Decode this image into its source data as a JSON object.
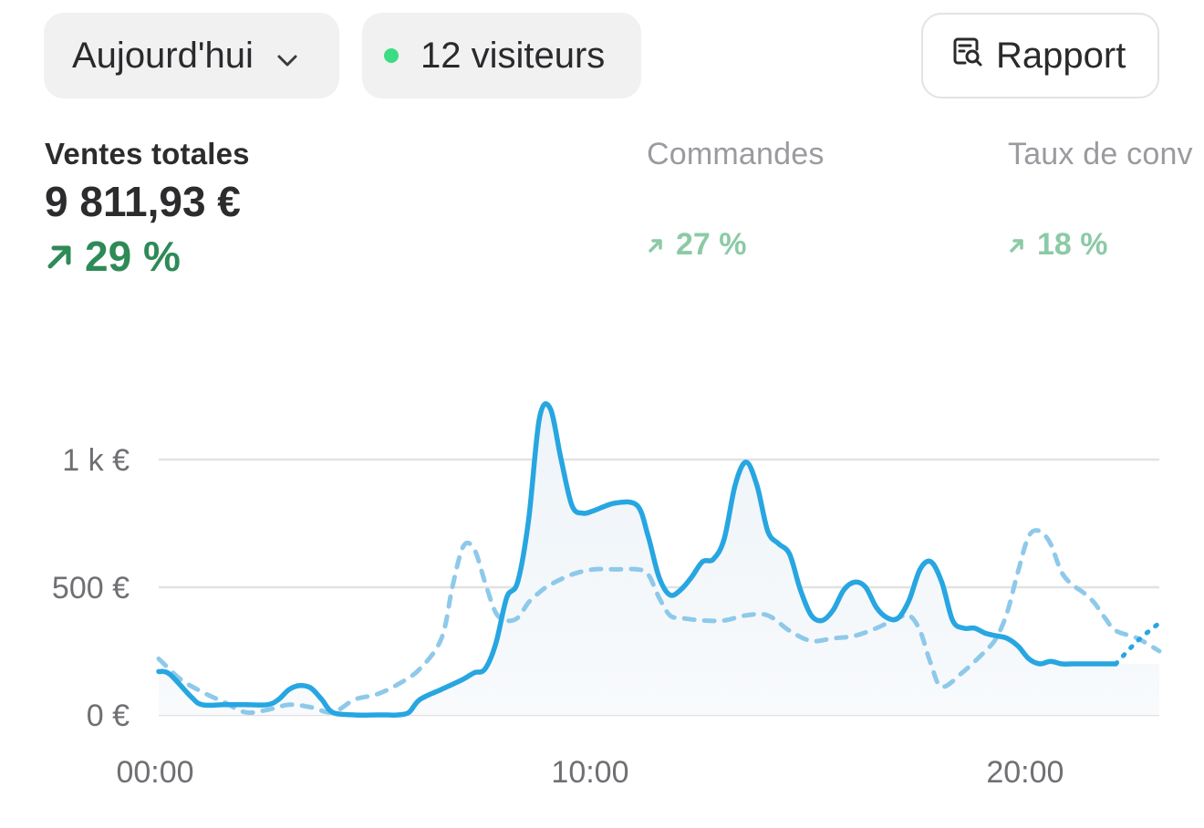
{
  "toolbar": {
    "date_label": "Aujourd'hui",
    "visitors_label": "12 visiteurs",
    "report_label": "Rapport",
    "live_dot_color": "#3ddc84"
  },
  "metrics": {
    "sales": {
      "label": "Ventes totales",
      "value": "9 811,93 €",
      "delta": "29 %"
    },
    "orders": {
      "label": "Commandes",
      "delta": "27 %"
    },
    "conversion": {
      "label": "Taux de conv",
      "delta": "18 %"
    }
  },
  "colors": {
    "current_series": "#27a6e1",
    "previous_series": "#8ec9ea",
    "positive": "#2e8a57",
    "positive_faded": "#8ccaa6"
  },
  "chart_data": {
    "type": "line",
    "y_ticks": [
      {
        "value": 0,
        "label": "0 €"
      },
      {
        "value": 500,
        "label": "500 €"
      },
      {
        "value": 1000,
        "label": "1 k €"
      }
    ],
    "x_ticks": [
      {
        "value": 0,
        "label": "00:00"
      },
      {
        "value": 10,
        "label": "10:00"
      },
      {
        "value": 20,
        "label": "20:00"
      }
    ],
    "ylim": [
      0,
      1000
    ],
    "xlim": [
      0,
      23
    ],
    "grid": true,
    "series": [
      {
        "style": "solid-area",
        "x": [
          0,
          0.25,
          0.75,
          1,
          1.5,
          2,
          2.5,
          2.75,
          3,
          3.25,
          3.5,
          3.75,
          4,
          4.5,
          5,
          5.25,
          5.5,
          5.75,
          6,
          6.5,
          7,
          7.25,
          7.5,
          7.75,
          8,
          8.25,
          8.5,
          8.75,
          9,
          9.25,
          9.5,
          9.75,
          10,
          10.5,
          11,
          11.25,
          11.5,
          11.75,
          12,
          12.25,
          12.5,
          12.75,
          13,
          13.25,
          13.5,
          13.75,
          14,
          14.25,
          14.5,
          14.75,
          15,
          15.25,
          15.5,
          15.75,
          16,
          16.25,
          16.5,
          16.75,
          17,
          17.25,
          17.5,
          17.75,
          18,
          18.25,
          18.5,
          18.75,
          19,
          19.25,
          19.5,
          19.75,
          20,
          20.25,
          20.5,
          20.75,
          21,
          21.25,
          21.5,
          21.75,
          22
        ],
        "values": [
          170,
          160,
          70,
          40,
          40,
          40,
          40,
          60,
          100,
          115,
          105,
          60,
          10,
          0,
          0,
          0,
          0,
          10,
          60,
          100,
          140,
          165,
          180,
          280,
          460,
          520,
          760,
          1160,
          1200,
          1000,
          820,
          790,
          800,
          830,
          820,
          700,
          540,
          470,
          490,
          540,
          600,
          610,
          690,
          900,
          990,
          900,
          720,
          670,
          630,
          490,
          390,
          370,
          410,
          490,
          520,
          500,
          420,
          380,
          380,
          450,
          570,
          600,
          520,
          370,
          340,
          340,
          320,
          310,
          300,
          270,
          220,
          200,
          210,
          200,
          200,
          200,
          200,
          200,
          200
        ]
      },
      {
        "style": "dotted-extension",
        "x": [
          22,
          22.5,
          23
        ],
        "values": [
          200,
          290,
          360
        ]
      },
      {
        "style": "dashed",
        "x": [
          0,
          0.5,
          1,
          1.5,
          2,
          2.5,
          3,
          3.5,
          4,
          4.5,
          5,
          5.5,
          6,
          6.5,
          6.75,
          7,
          7.25,
          7.5,
          7.75,
          8,
          8.25,
          8.5,
          8.75,
          9,
          9.5,
          10,
          10.5,
          11,
          11.25,
          11.5,
          11.75,
          12,
          12.5,
          13,
          13.5,
          14,
          14.5,
          15,
          15.5,
          16,
          16.5,
          17,
          17.25,
          17.5,
          17.75,
          18,
          18.5,
          19,
          19.25,
          19.5,
          19.75,
          20,
          20.25,
          20.5,
          20.75,
          21,
          21.25,
          21.5,
          21.75,
          22,
          22.5,
          23
        ],
        "values": [
          220,
          140,
          90,
          50,
          10,
          20,
          40,
          30,
          10,
          60,
          80,
          120,
          180,
          300,
          500,
          660,
          650,
          520,
          400,
          370,
          380,
          440,
          480,
          510,
          550,
          570,
          570,
          570,
          550,
          460,
          390,
          380,
          370,
          370,
          390,
          390,
          330,
          290,
          300,
          310,
          340,
          380,
          390,
          330,
          200,
          110,
          170,
          250,
          300,
          400,
          560,
          700,
          720,
          670,
          560,
          510,
          480,
          440,
          380,
          330,
          300,
          250
        ]
      }
    ]
  }
}
